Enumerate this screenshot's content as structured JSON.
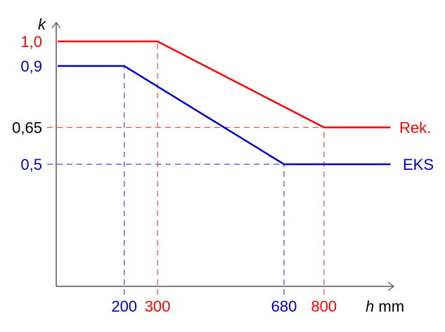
{
  "chart_data": {
    "type": "line",
    "xlabel": "h",
    "xunit": "mm",
    "ylabel": "k",
    "xlim": [
      0,
      1000
    ],
    "ylim": [
      0,
      1.0
    ],
    "grid": false,
    "series": [
      {
        "name": "Rek.",
        "color": "#ff0000",
        "x": [
          0,
          300,
          800,
          1000
        ],
        "y": [
          1.0,
          1.0,
          0.65,
          0.65
        ]
      },
      {
        "name": "EKS",
        "color": "#0000cc",
        "x": [
          0,
          200,
          680,
          1000
        ],
        "y": [
          0.9,
          0.9,
          0.5,
          0.5
        ]
      }
    ],
    "y_ticks": [
      {
        "value": 1.0,
        "label": "1,0",
        "color": "#ff0000"
      },
      {
        "value": 0.9,
        "label": "0,9",
        "color": "#0000cc"
      },
      {
        "value": 0.65,
        "label": "0,65",
        "color": "#000000"
      },
      {
        "value": 0.5,
        "label": "0,5",
        "color": "#0000cc"
      }
    ],
    "x_ticks": [
      {
        "value": 200,
        "label": "200",
        "color": "#0000cc"
      },
      {
        "value": 300,
        "label": "300",
        "color": "#ff0000"
      },
      {
        "value": 680,
        "label": "680",
        "color": "#0000cc"
      },
      {
        "value": 800,
        "label": "800",
        "color": "#ff0000"
      }
    ],
    "guides": [
      {
        "type": "h",
        "value": 0.65,
        "to_x": 800,
        "color": "#ff0000"
      },
      {
        "type": "h",
        "value": 0.5,
        "to_x": 680,
        "color": "#0000cc"
      },
      {
        "type": "v",
        "value": 200,
        "to_y": 0.9,
        "color": "#0000cc"
      },
      {
        "type": "v",
        "value": 300,
        "to_y": 1.0,
        "color": "#ff0000"
      },
      {
        "type": "v",
        "value": 680,
        "to_y": 0.5,
        "color": "#0000cc"
      },
      {
        "type": "v",
        "value": 800,
        "to_y": 0.65,
        "color": "#ff0000"
      }
    ]
  }
}
